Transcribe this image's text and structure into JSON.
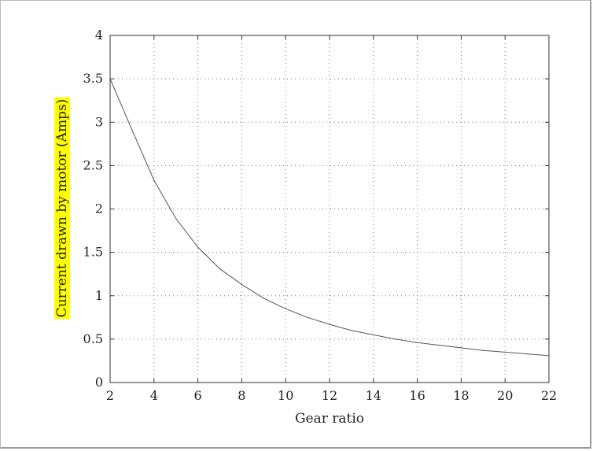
{
  "chart_data": {
    "type": "line",
    "xlabel": "Gear ratio",
    "ylabel": "Current drawn by motor (Amps)",
    "xlim": [
      2,
      22
    ],
    "ylim": [
      0,
      4
    ],
    "xticks": [
      2,
      4,
      6,
      8,
      10,
      12,
      14,
      16,
      18,
      20,
      22
    ],
    "yticks": [
      0,
      0.5,
      1,
      1.5,
      2,
      2.5,
      3,
      3.5,
      4
    ],
    "grid": true,
    "series": [
      {
        "x": [
          2,
          3,
          4,
          5,
          6,
          7,
          8,
          9,
          10,
          11,
          12,
          13,
          14,
          15,
          16,
          17,
          18,
          19,
          20,
          21,
          22
        ],
        "y": [
          3.5,
          2.91,
          2.33,
          1.89,
          1.56,
          1.31,
          1.13,
          0.97,
          0.85,
          0.75,
          0.67,
          0.6,
          0.55,
          0.5,
          0.46,
          0.43,
          0.4,
          0.37,
          0.35,
          0.33,
          0.31
        ]
      }
    ]
  },
  "colors": {
    "line": "#555555",
    "axis": "#333333",
    "grid": "#777777",
    "ylabel_highlight": "#ffff00"
  }
}
